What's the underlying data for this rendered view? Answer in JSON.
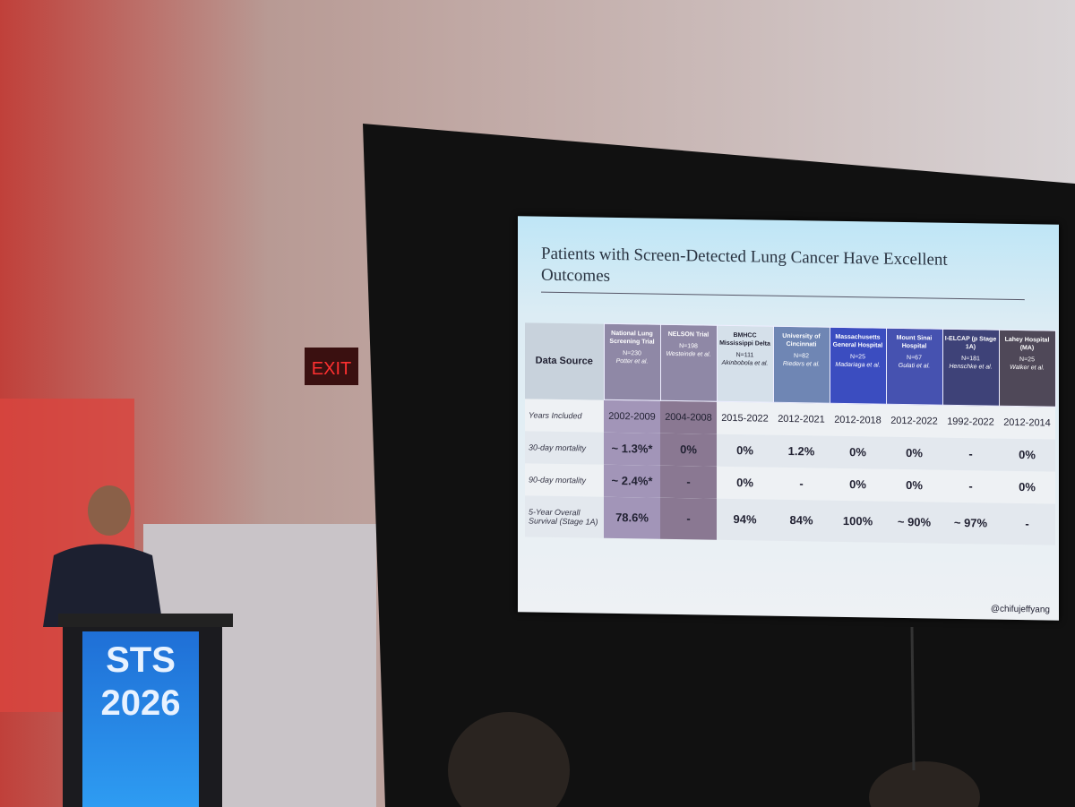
{
  "exit_sign": "EXIT",
  "podium": {
    "line1": "STS",
    "line2": "2026"
  },
  "slide": {
    "title": "Patients with Screen-Detected Lung Cancer Have Excellent Outcomes",
    "table": {
      "corner": "Data Source",
      "columns": [
        {
          "name": "National Lung Screening Trial",
          "n": "N=230",
          "author": "Potter et al."
        },
        {
          "name": "NELSON Trial",
          "n": "N=198",
          "author": "Westeinde et al."
        },
        {
          "name": "BMHCC Mississippi Delta",
          "n": "N=111",
          "author": "Akinbobola et al."
        },
        {
          "name": "University of Cincinnati",
          "n": "N=82",
          "author": "Rieders et al."
        },
        {
          "name": "Massachusetts General Hospital",
          "n": "N=25",
          "author": "Madariaga et al."
        },
        {
          "name": "Mount Sinai Hospital",
          "n": "N=67",
          "author": "Gulati et al."
        },
        {
          "name": "I-ELCAP (p Stage 1A)",
          "n": "N=181",
          "author": "Henschke et al."
        },
        {
          "name": "Lahey Hospital (MA)",
          "n": "N=25",
          "author": "Walker et al."
        }
      ],
      "rows": [
        {
          "label": "Years Included",
          "cells": [
            "2002-2009",
            "2004-2008",
            "2015-2022",
            "2012-2021",
            "2012-2018",
            "2012-2022",
            "1992-2022",
            "2012-2014"
          ]
        },
        {
          "label": "30-day mortality",
          "cells": [
            "~ 1.3%*",
            "0%",
            "0%",
            "1.2%",
            "0%",
            "0%",
            "-",
            "0%"
          ]
        },
        {
          "label": "90-day mortality",
          "cells": [
            "~ 2.4%*",
            "-",
            "0%",
            "-",
            "0%",
            "0%",
            "-",
            "0%"
          ]
        },
        {
          "label": "5-Year Overall Survival (Stage 1A)",
          "cells": [
            "78.6%",
            "-",
            "94%",
            "84%",
            "100%",
            "~ 90%",
            "~ 97%",
            "-"
          ]
        }
      ]
    },
    "handle": "@chifujeffyang"
  }
}
